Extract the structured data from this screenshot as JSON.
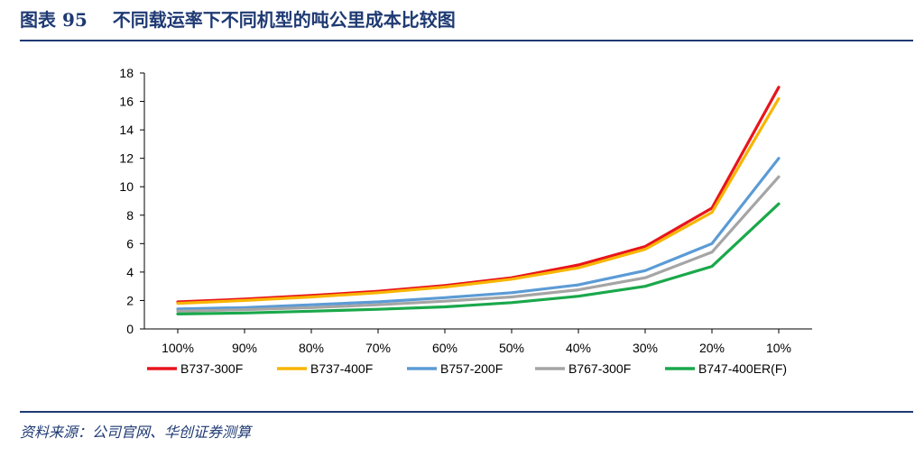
{
  "title": {
    "prefix": "图表 95",
    "text": "不同载运率下不同机型的吨公里成本比较图"
  },
  "source": "资料来源：公司官网、华创证券测算",
  "chart_data": {
    "type": "line",
    "title": "",
    "xlabel": "",
    "ylabel": "",
    "ylim": [
      0,
      18
    ],
    "yticks": [
      0,
      2,
      4,
      6,
      8,
      10,
      12,
      14,
      16,
      18
    ],
    "grid": false,
    "legend_position": "bottom",
    "categories": [
      "100%",
      "90%",
      "80%",
      "70%",
      "60%",
      "50%",
      "40%",
      "30%",
      "20%",
      "10%"
    ],
    "series": [
      {
        "name": "B737-300F",
        "color": "#e8141c",
        "values": [
          1.9,
          2.1,
          2.35,
          2.65,
          3.05,
          3.6,
          4.5,
          5.8,
          8.5,
          17.0
        ]
      },
      {
        "name": "B737-400F",
        "color": "#f7b500",
        "values": [
          1.8,
          2.0,
          2.25,
          2.55,
          2.95,
          3.5,
          4.3,
          5.6,
          8.2,
          16.2
        ]
      },
      {
        "name": "B757-200F",
        "color": "#5b9bd5",
        "values": [
          1.4,
          1.5,
          1.7,
          1.9,
          2.2,
          2.55,
          3.1,
          4.1,
          6.0,
          12.0
        ]
      },
      {
        "name": "B767-300F",
        "color": "#a5a5a5",
        "values": [
          1.25,
          1.35,
          1.5,
          1.7,
          1.95,
          2.25,
          2.75,
          3.6,
          5.4,
          10.7
        ]
      },
      {
        "name": "B747-400ER(F)",
        "color": "#1aa84b",
        "values": [
          1.05,
          1.12,
          1.25,
          1.38,
          1.55,
          1.85,
          2.3,
          3.0,
          4.4,
          8.8
        ]
      }
    ]
  }
}
